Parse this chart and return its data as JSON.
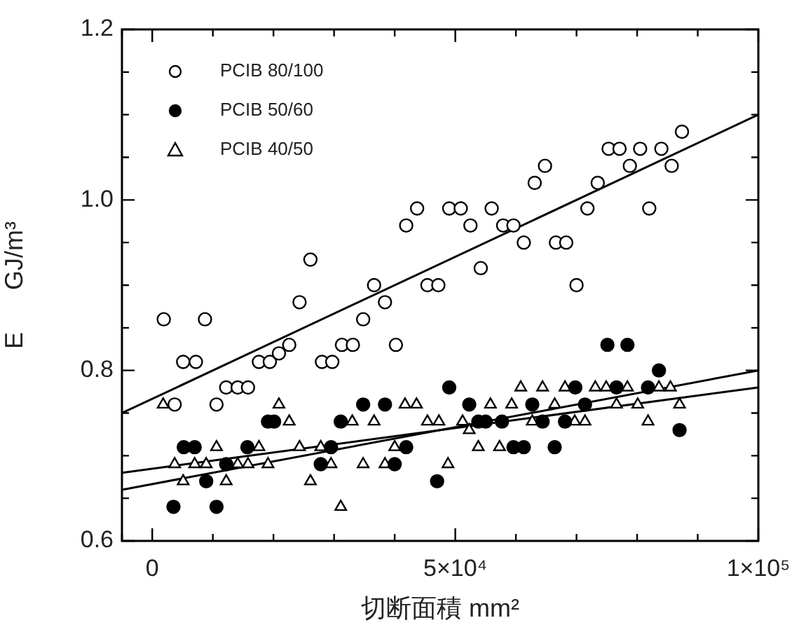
{
  "chart_data": {
    "type": "scatter",
    "xlabel": "切断面積 mm²",
    "ylabel": "E      GJ/m³",
    "xlim": [
      -5000,
      100000
    ],
    "ylim": [
      0.6,
      1.2
    ],
    "xticks": [
      {
        "value": -5000,
        "label": null
      },
      {
        "value": 0,
        "label": "0"
      },
      {
        "value": 10000,
        "label": null
      },
      {
        "value": 20000,
        "label": null
      },
      {
        "value": 30000,
        "label": null
      },
      {
        "value": 40000,
        "label": null
      },
      {
        "value": 50000,
        "label": "5×10⁴"
      },
      {
        "value": 60000,
        "label": null
      },
      {
        "value": 70000,
        "label": null
      },
      {
        "value": 80000,
        "label": null
      },
      {
        "value": 90000,
        "label": null
      },
      {
        "value": 100000,
        "label": "1×10⁵"
      }
    ],
    "yticks": [
      0.6,
      {
        "value": 0.65,
        "label": null
      },
      {
        "value": 0.7,
        "label": null
      },
      {
        "value": 0.75,
        "label": null
      },
      0.8,
      {
        "value": 0.85,
        "label": null
      },
      {
        "value": 0.9,
        "label": null
      },
      {
        "value": 0.95,
        "label": null
      },
      {
        "value": 1,
        "label": "1.0"
      },
      {
        "value": 1.05,
        "label": null
      },
      {
        "value": 1.1,
        "label": null
      },
      {
        "value": 1.15,
        "label": null
      },
      1.2
    ],
    "grid": false,
    "legend": "top left",
    "series": [
      {
        "name": "PCIB 80/100",
        "color": "#ffffff",
        "marker": "circle",
        "x": [
          1900,
          8700,
          5100,
          7200,
          12200,
          14100,
          15800,
          3700,
          10600,
          17600,
          19400,
          20900,
          22600,
          24300,
          28000,
          29700,
          31300,
          33100,
          34800,
          36600,
          38400,
          40200,
          45400,
          47200,
          26100,
          41900,
          43700,
          49000,
          50900,
          52500,
          56000,
          54200,
          57900,
          59600,
          61300,
          63100,
          64800,
          66600,
          68300,
          70000,
          71800,
          73500,
          75300,
          77100,
          78800,
          80500,
          82000,
          84000,
          85700,
          87400
        ],
        "values": [
          0.86,
          0.86,
          0.81,
          0.81,
          0.78,
          0.78,
          0.78,
          0.76,
          0.76,
          0.81,
          0.81,
          0.82,
          0.83,
          0.88,
          0.81,
          0.81,
          0.83,
          0.83,
          0.86,
          0.9,
          0.88,
          0.83,
          0.9,
          0.9,
          0.93,
          0.97,
          0.99,
          0.99,
          0.99,
          0.97,
          0.99,
          0.92,
          0.97,
          0.97,
          0.95,
          1.02,
          1.04,
          0.95,
          0.95,
          0.9,
          0.99,
          1.02,
          1.06,
          1.06,
          1.04,
          1.06,
          0.99,
          1.06,
          1.04,
          1.08
        ]
      },
      {
        "name": "PCIB 50/60",
        "color": "#000000",
        "marker": "circle",
        "x": [
          5200,
          7000,
          3500,
          8900,
          10600,
          12200,
          15700,
          19100,
          20100,
          27800,
          29500,
          31100,
          34800,
          38400,
          40000,
          41900,
          47000,
          49000,
          52300,
          53800,
          55000,
          57700,
          59600,
          61300,
          62700,
          64400,
          66400,
          68100,
          69800,
          71400,
          75100,
          78400,
          76600,
          81800,
          83600,
          87000
        ],
        "values": [
          0.71,
          0.71,
          0.64,
          0.67,
          0.64,
          0.69,
          0.71,
          0.74,
          0.74,
          0.69,
          0.71,
          0.74,
          0.76,
          0.76,
          0.69,
          0.71,
          0.67,
          0.78,
          0.76,
          0.74,
          0.74,
          0.74,
          0.71,
          0.71,
          0.76,
          0.74,
          0.71,
          0.74,
          0.78,
          0.76,
          0.83,
          0.83,
          0.78,
          0.78,
          0.8,
          0.73
        ]
      },
      {
        "name": "PCIB 40/50",
        "color": "#ffffff",
        "marker": "triangle",
        "x": [
          1800,
          3700,
          5100,
          7000,
          8900,
          10600,
          12200,
          14100,
          15800,
          17600,
          19100,
          20900,
          22600,
          24300,
          26100,
          27800,
          29500,
          31100,
          33000,
          34800,
          36600,
          38400,
          40000,
          41700,
          43600,
          45400,
          47300,
          48800,
          51200,
          52300,
          53800,
          55800,
          57300,
          59300,
          60800,
          62700,
          64400,
          66400,
          68100,
          69700,
          71400,
          73100,
          74900,
          76600,
          78400,
          80100,
          81800,
          83600,
          85500,
          87000
        ],
        "values": [
          0.76,
          0.69,
          0.67,
          0.69,
          0.69,
          0.71,
          0.67,
          0.69,
          0.69,
          0.71,
          0.69,
          0.76,
          0.74,
          0.71,
          0.67,
          0.71,
          0.69,
          0.64,
          0.74,
          0.69,
          0.74,
          0.69,
          0.71,
          0.76,
          0.76,
          0.74,
          0.74,
          0.69,
          0.74,
          0.73,
          0.71,
          0.76,
          0.71,
          0.76,
          0.78,
          0.74,
          0.78,
          0.76,
          0.78,
          0.74,
          0.74,
          0.78,
          0.78,
          0.76,
          0.78,
          0.76,
          0.74,
          0.78,
          0.78,
          0.76
        ]
      },
      {
        "type": "line",
        "color": "#000000",
        "marker": "none",
        "x": [
          -5000,
          100000
        ],
        "values": [
          0.75,
          1.1
        ]
      },
      {
        "type": "line",
        "color": "#000000",
        "marker": "none",
        "x": [
          -5000,
          100000
        ],
        "values": [
          0.66,
          0.8
        ]
      },
      {
        "type": "line",
        "color": "#000000",
        "marker": "none",
        "x": [
          -5000,
          100000
        ],
        "values": [
          0.68,
          0.78
        ]
      }
    ]
  }
}
